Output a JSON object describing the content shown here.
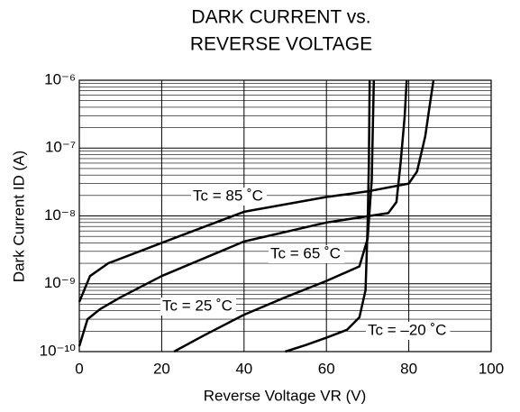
{
  "chart_data": {
    "type": "line",
    "title": [
      "DARK CURRENT vs.",
      "REVERSE VOLTAGE"
    ],
    "x_label": "Reverse Voltage  VR (V)",
    "y_label": "Dark Current  ID (A)",
    "xlim": [
      0,
      100
    ],
    "xticks": [
      0,
      20,
      40,
      60,
      80,
      100
    ],
    "ylim": [
      1e-10,
      1e-06
    ],
    "log_y": true,
    "grid": true,
    "yticks": [
      {
        "value": 1e-10,
        "label": "10⁻¹⁰"
      },
      {
        "value": 1e-09,
        "label": "10⁻⁹"
      },
      {
        "value": 1e-08,
        "label": "10⁻⁸"
      },
      {
        "value": 1e-07,
        "label": "10⁻⁷"
      },
      {
        "value": 1e-06,
        "label": "10⁻⁶"
      }
    ],
    "series": [
      {
        "name": "Tc = 85 ˚C",
        "color": "#000000",
        "x": [
          0,
          2.6,
          7,
          20,
          40,
          60,
          70,
          80,
          82,
          84,
          85,
          86
        ],
        "values": [
          5.4e-10,
          1.3e-09,
          2e-09,
          4e-09,
          1.15e-08,
          1.9e-08,
          2.3e-08,
          3e-08,
          4.5e-08,
          1.5e-07,
          3.9e-07,
          1e-06
        ]
      },
      {
        "name": "Tc = 65 ˚C",
        "color": "#000000",
        "x": [
          0,
          2,
          5,
          10,
          20,
          40,
          60,
          75,
          77,
          78,
          79,
          79.5
        ],
        "values": [
          1.2e-10,
          3e-10,
          4.2e-10,
          6.3e-10,
          1.3e-09,
          4.2e-09,
          8e-09,
          1.1e-08,
          1.6e-08,
          6e-08,
          2.9e-07,
          1e-06
        ]
      },
      {
        "name": "Tc = 25 ˚C",
        "color": "#000000",
        "x": [
          23,
          30,
          40,
          50,
          60,
          68,
          70,
          71,
          71.5
        ],
        "values": [
          1e-10,
          1.7e-10,
          3.5e-10,
          6.3e-10,
          1.1e-09,
          1.8e-09,
          4.6e-09,
          3.4e-08,
          1e-06
        ]
      },
      {
        "name": "Tc = –20 ˚C",
        "color": "#000000",
        "x": [
          50,
          55,
          60,
          65,
          68,
          69.5,
          70,
          70.3,
          70.5
        ],
        "values": [
          1e-10,
          1.25e-10,
          1.6e-10,
          2.1e-10,
          3.2e-10,
          8e-10,
          7e-09,
          6e-08,
          1e-06
        ]
      }
    ]
  }
}
